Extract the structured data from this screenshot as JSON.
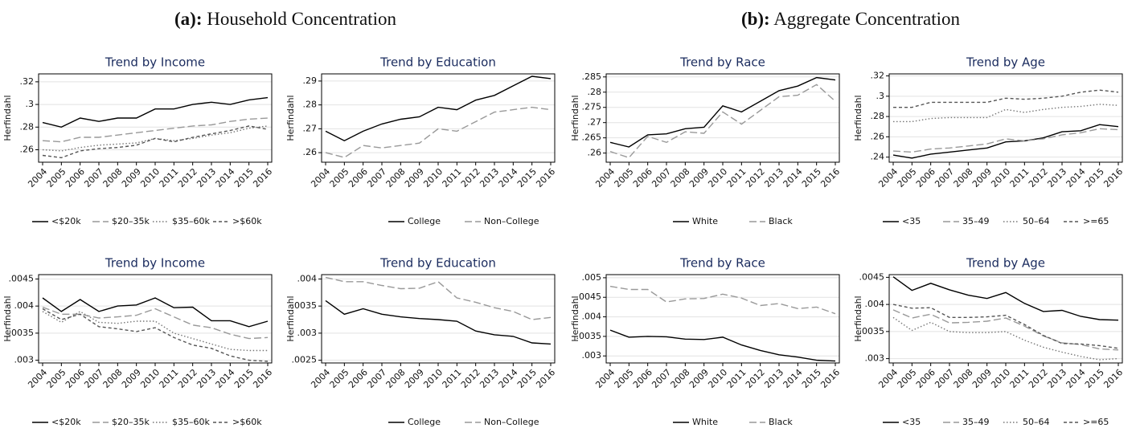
{
  "panels": [
    {
      "label": "(a):",
      "title": "Household Concentration"
    },
    {
      "label": "(b):",
      "title": "Aggregate Concentration"
    }
  ],
  "chart_data": [
    {
      "type": "line",
      "title": "Trend by Income",
      "y_label": "Herfindahl",
      "grid": true,
      "categories": [
        "2004",
        "2005",
        "2006",
        "2007",
        "2008",
        "2009",
        "2010",
        "2011",
        "2012",
        "2013",
        "2014",
        "2015",
        "2016"
      ],
      "ylim": [
        0.249,
        0.327
      ],
      "yticks": [
        {
          "value": 0.26,
          "label": ".26"
        },
        {
          "value": 0.28,
          "label": ".28"
        },
        {
          "value": 0.3,
          "label": ".3"
        },
        {
          "value": 0.32,
          "label": ".32"
        }
      ],
      "series": [
        {
          "name": "<$20k",
          "color": "#000000",
          "style": "solid",
          "values": [
            0.284,
            0.28,
            0.288,
            0.285,
            0.288,
            0.288,
            0.296,
            0.296,
            0.3,
            0.302,
            0.3,
            0.304,
            0.306
          ]
        },
        {
          "name": "$20–35k",
          "color": "#999999",
          "style": "dashed",
          "values": [
            0.268,
            0.267,
            0.271,
            0.271,
            0.273,
            0.275,
            0.277,
            0.279,
            0.281,
            0.282,
            0.285,
            0.287,
            0.288
          ]
        },
        {
          "name": "$35–60k",
          "color": "#777777",
          "style": "dotted",
          "values": [
            0.26,
            0.259,
            0.262,
            0.264,
            0.265,
            0.266,
            0.27,
            0.268,
            0.27,
            0.273,
            0.275,
            0.279,
            0.281
          ]
        },
        {
          "name": ">$60k",
          "color": "#555555",
          "style": "shortdash",
          "values": [
            0.255,
            0.253,
            0.259,
            0.261,
            0.262,
            0.264,
            0.27,
            0.267,
            0.271,
            0.274,
            0.277,
            0.281,
            0.278
          ]
        }
      ]
    },
    {
      "type": "line",
      "title": "Trend by Education",
      "y_label": "Herfindahl",
      "grid": true,
      "categories": [
        "2004",
        "2005",
        "2006",
        "2007",
        "2008",
        "2009",
        "2010",
        "2011",
        "2012",
        "2013",
        "2014",
        "2015",
        "2016"
      ],
      "ylim": [
        0.256,
        0.293
      ],
      "yticks": [
        {
          "value": 0.26,
          "label": ".26"
        },
        {
          "value": 0.27,
          "label": ".27"
        },
        {
          "value": 0.28,
          "label": ".28"
        },
        {
          "value": 0.29,
          "label": ".29"
        }
      ],
      "series": [
        {
          "name": "College",
          "color": "#000000",
          "style": "solid",
          "values": [
            0.269,
            0.265,
            0.269,
            0.272,
            0.274,
            0.275,
            0.279,
            0.278,
            0.282,
            0.284,
            0.288,
            0.292,
            0.291
          ]
        },
        {
          "name": "Non–College",
          "color": "#999999",
          "style": "dashed",
          "values": [
            0.26,
            0.258,
            0.263,
            0.262,
            0.263,
            0.264,
            0.27,
            0.269,
            0.273,
            0.277,
            0.278,
            0.279,
            0.278
          ]
        }
      ]
    },
    {
      "type": "line",
      "title": "Trend by Income",
      "y_label": "Herfindahl",
      "grid": true,
      "categories": [
        "2004",
        "2005",
        "2006",
        "2007",
        "2008",
        "2009",
        "2010",
        "2011",
        "2012",
        "2013",
        "2014",
        "2015",
        "2016"
      ],
      "ylim": [
        0.00295,
        0.00458
      ],
      "yticks": [
        {
          "value": 0.003,
          "label": ".003"
        },
        {
          "value": 0.0035,
          "label": ".0035"
        },
        {
          "value": 0.004,
          "label": ".004"
        },
        {
          "value": 0.0045,
          "label": ".0045"
        }
      ],
      "series": [
        {
          "name": "<$20k",
          "color": "#000000",
          "style": "solid",
          "values": [
            0.00415,
            0.0039,
            0.00412,
            0.0039,
            0.004,
            0.00402,
            0.00415,
            0.00397,
            0.00398,
            0.00373,
            0.00373,
            0.00362,
            0.00372
          ]
        },
        {
          "name": "$20–35k",
          "color": "#999999",
          "style": "dashed",
          "values": [
            0.00398,
            0.00385,
            0.00385,
            0.00378,
            0.0038,
            0.00383,
            0.00395,
            0.0038,
            0.00365,
            0.0036,
            0.00348,
            0.0034,
            0.00342
          ]
        },
        {
          "name": "$35–60k",
          "color": "#777777",
          "style": "dotted",
          "values": [
            0.0039,
            0.0037,
            0.0039,
            0.0037,
            0.00368,
            0.00372,
            0.00372,
            0.0035,
            0.0034,
            0.0033,
            0.0032,
            0.00318,
            0.00318
          ]
        },
        {
          "name": ">$60k",
          "color": "#555555",
          "style": "shortdash",
          "values": [
            0.00395,
            0.00375,
            0.00385,
            0.00362,
            0.00358,
            0.00353,
            0.0036,
            0.00342,
            0.00328,
            0.00322,
            0.00308,
            0.003,
            0.00298
          ]
        }
      ]
    },
    {
      "type": "line",
      "title": "Trend by Education",
      "y_label": "Herfindahl",
      "grid": true,
      "categories": [
        "2004",
        "2005",
        "2006",
        "2007",
        "2008",
        "2009",
        "2010",
        "2011",
        "2012",
        "2013",
        "2014",
        "2015",
        "2016"
      ],
      "ylim": [
        0.00245,
        0.00408
      ],
      "yticks": [
        {
          "value": 0.0025,
          "label": ".0025"
        },
        {
          "value": 0.003,
          "label": ".003"
        },
        {
          "value": 0.0035,
          "label": ".0035"
        },
        {
          "value": 0.004,
          "label": ".004"
        }
      ],
      "series": [
        {
          "name": "College",
          "color": "#000000",
          "style": "solid",
          "values": [
            0.0036,
            0.00335,
            0.00345,
            0.00335,
            0.0033,
            0.00327,
            0.00325,
            0.00322,
            0.00304,
            0.00297,
            0.00294,
            0.00282,
            0.0028
          ]
        },
        {
          "name": "Non–College",
          "color": "#999999",
          "style": "dashed",
          "values": [
            0.00403,
            0.00395,
            0.00395,
            0.00388,
            0.00382,
            0.00383,
            0.00395,
            0.00365,
            0.00357,
            0.00347,
            0.0034,
            0.00325,
            0.00329
          ]
        }
      ]
    },
    {
      "type": "line",
      "title": "Trend by Race",
      "y_label": "Herfindahl",
      "grid": true,
      "categories": [
        "2004",
        "2005",
        "2006",
        "2007",
        "2008",
        "2009",
        "2010",
        "2011",
        "2012",
        "2013",
        "2014",
        "2015",
        "2016"
      ],
      "ylim": [
        0.257,
        0.286
      ],
      "yticks": [
        {
          "value": 0.26,
          "label": ".26"
        },
        {
          "value": 0.265,
          "label": ".265"
        },
        {
          "value": 0.27,
          "label": ".27"
        },
        {
          "value": 0.275,
          "label": ".275"
        },
        {
          "value": 0.28,
          "label": ".28"
        },
        {
          "value": 0.285,
          "label": ".285"
        }
      ],
      "series": [
        {
          "name": "White",
          "color": "#000000",
          "style": "solid",
          "values": [
            0.2635,
            0.262,
            0.266,
            0.2663,
            0.268,
            0.2685,
            0.2755,
            0.2735,
            0.277,
            0.2805,
            0.282,
            0.2848,
            0.284
          ]
        },
        {
          "name": "Black",
          "color": "#999999",
          "style": "dashed",
          "values": [
            0.2605,
            0.2585,
            0.2655,
            0.2635,
            0.267,
            0.2665,
            0.2735,
            0.2695,
            0.274,
            0.2785,
            0.279,
            0.2825,
            0.277
          ]
        }
      ]
    },
    {
      "type": "line",
      "title": "Trend by Age",
      "y_label": "Herfindahl",
      "grid": true,
      "categories": [
        "2004",
        "2005",
        "2006",
        "2007",
        "2008",
        "2009",
        "2010",
        "2011",
        "2012",
        "2013",
        "2014",
        "2015",
        "2016"
      ],
      "ylim": [
        0.235,
        0.322
      ],
      "yticks": [
        {
          "value": 0.24,
          "label": ".24"
        },
        {
          "value": 0.26,
          "label": ".26"
        },
        {
          "value": 0.28,
          "label": ".28"
        },
        {
          "value": 0.3,
          "label": ".3"
        },
        {
          "value": 0.32,
          "label": ".32"
        }
      ],
      "series": [
        {
          "name": "<35",
          "color": "#000000",
          "style": "solid",
          "values": [
            0.242,
            0.239,
            0.243,
            0.245,
            0.247,
            0.249,
            0.255,
            0.256,
            0.259,
            0.265,
            0.266,
            0.272,
            0.27
          ]
        },
        {
          "name": "35–49",
          "color": "#999999",
          "style": "dashed",
          "values": [
            0.246,
            0.245,
            0.248,
            0.249,
            0.251,
            0.253,
            0.258,
            0.256,
            0.258,
            0.262,
            0.264,
            0.268,
            0.267
          ]
        },
        {
          "name": "50–64",
          "color": "#777777",
          "style": "dotted",
          "values": [
            0.275,
            0.275,
            0.278,
            0.279,
            0.279,
            0.279,
            0.287,
            0.284,
            0.287,
            0.289,
            0.29,
            0.292,
            0.291
          ]
        },
        {
          "name": ">=65",
          "color": "#555555",
          "style": "shortdash",
          "values": [
            0.289,
            0.289,
            0.294,
            0.294,
            0.294,
            0.294,
            0.298,
            0.297,
            0.298,
            0.3,
            0.304,
            0.306,
            0.304
          ]
        }
      ]
    },
    {
      "type": "line",
      "title": "Trend by Race",
      "y_label": "Herfindahl",
      "grid": true,
      "categories": [
        "2004",
        "2005",
        "2006",
        "2007",
        "2008",
        "2009",
        "2010",
        "2011",
        "2012",
        "2013",
        "2014",
        "2015",
        "2016"
      ],
      "ylim": [
        0.00282,
        0.00508
      ],
      "yticks": [
        {
          "value": 0.003,
          "label": ".003"
        },
        {
          "value": 0.0035,
          "label": ".0035"
        },
        {
          "value": 0.004,
          "label": ".004"
        },
        {
          "value": 0.0045,
          "label": ".0045"
        },
        {
          "value": 0.005,
          "label": ".005"
        }
      ],
      "series": [
        {
          "name": "White",
          "color": "#000000",
          "style": "solid",
          "values": [
            0.00366,
            0.00348,
            0.0035,
            0.00349,
            0.00343,
            0.00342,
            0.00348,
            0.00328,
            0.00314,
            0.00303,
            0.00297,
            0.00289,
            0.00287
          ]
        },
        {
          "name": "Black",
          "color": "#999999",
          "style": "dashed",
          "values": [
            0.00478,
            0.0047,
            0.0047,
            0.00438,
            0.00446,
            0.00447,
            0.00458,
            0.00448,
            0.00429,
            0.00434,
            0.00421,
            0.00425,
            0.00408
          ]
        }
      ]
    },
    {
      "type": "line",
      "title": "Trend by Age",
      "y_label": "Herfindahl",
      "grid": true,
      "categories": [
        "2004",
        "2005",
        "2006",
        "2007",
        "2008",
        "2009",
        "2010",
        "2011",
        "2012",
        "2013",
        "2014",
        "2015",
        "2016"
      ],
      "ylim": [
        0.00292,
        0.00455
      ],
      "yticks": [
        {
          "value": 0.003,
          "label": ".003"
        },
        {
          "value": 0.0035,
          "label": ".0035"
        },
        {
          "value": 0.004,
          "label": ".004"
        },
        {
          "value": 0.0045,
          "label": ".0045"
        }
      ],
      "series": [
        {
          "name": "<35",
          "color": "#000000",
          "style": "solid",
          "values": [
            0.00451,
            0.00426,
            0.00439,
            0.00427,
            0.00417,
            0.00411,
            0.00422,
            0.00402,
            0.00387,
            0.00389,
            0.00378,
            0.00372,
            0.00371
          ]
        },
        {
          "name": "35–49",
          "color": "#999999",
          "style": "dashed",
          "values": [
            0.0039,
            0.00375,
            0.00382,
            0.00366,
            0.00367,
            0.00369,
            0.00375,
            0.0036,
            0.00342,
            0.00329,
            0.00326,
            0.00318,
            0.00316
          ]
        },
        {
          "name": "50–64",
          "color": "#777777",
          "style": "dotted",
          "values": [
            0.00376,
            0.00352,
            0.00367,
            0.0035,
            0.00348,
            0.00348,
            0.0035,
            0.00334,
            0.00321,
            0.00312,
            0.00304,
            0.00298,
            0.003
          ]
        },
        {
          "name": ">=65",
          "color": "#555555",
          "style": "shortdash",
          "values": [
            0.004,
            0.00393,
            0.00394,
            0.00376,
            0.00376,
            0.00377,
            0.0038,
            0.00363,
            0.00343,
            0.00328,
            0.00327,
            0.00324,
            0.00319
          ]
        }
      ]
    }
  ]
}
